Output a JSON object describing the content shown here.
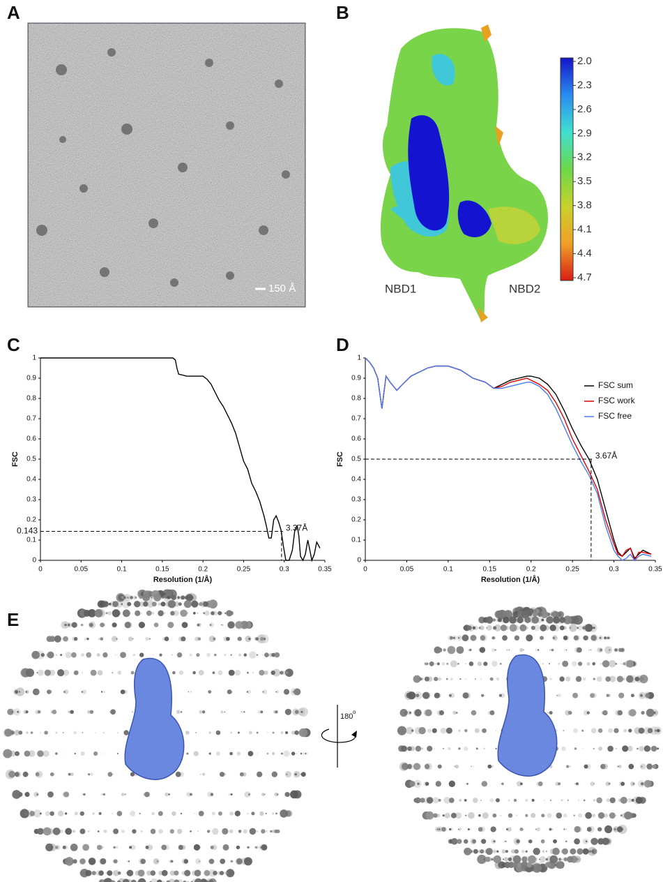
{
  "panels": {
    "a": "A",
    "b": "B",
    "c": "C",
    "d": "D",
    "e": "E"
  },
  "micrograph": {
    "scale_bar": "150 Å"
  },
  "map": {
    "labels": [
      "NBD1",
      "NBD2"
    ],
    "colorbar": {
      "lim": [
        2,
        4.7
      ],
      "ticks": [
        {
          "value": 2,
          "label": "2.0"
        },
        2.3,
        2.6,
        2.9,
        3.2,
        3.5,
        3.8,
        4.1,
        4.4,
        4.7
      ],
      "colors": [
        "#1414c8",
        "#2a8cf0",
        "#40e0d0",
        "#6cd84a",
        "#c8d22a",
        "#f0a028",
        "#d81e14"
      ]
    }
  },
  "chart_data": [
    {
      "type": "line",
      "y_label": "FSC",
      "x_label": "Resolution (1/Å)",
      "color": "#000000",
      "x": [
        0,
        0.05,
        0.1,
        0.15,
        0.163,
        0.166,
        0.168,
        0.17,
        0.175,
        0.18,
        0.19,
        0.2,
        0.205,
        0.21,
        0.215,
        0.22,
        0.225,
        0.23,
        0.235,
        0.24,
        0.245,
        0.25,
        0.255,
        0.26,
        0.265,
        0.27,
        0.275,
        0.278,
        0.281,
        0.284,
        0.287,
        0.29,
        0.293,
        0.296,
        0.299,
        0.302,
        0.306,
        0.31,
        0.313,
        0.316,
        0.318,
        0.32,
        0.323,
        0.326,
        0.329,
        0.331,
        0.334,
        0.337,
        0.34,
        0.344
      ],
      "values": [
        1,
        1,
        1,
        1,
        1,
        0.99,
        0.95,
        0.92,
        0.915,
        0.91,
        0.91,
        0.91,
        0.895,
        0.87,
        0.83,
        0.79,
        0.76,
        0.72,
        0.68,
        0.63,
        0.56,
        0.49,
        0.45,
        0.38,
        0.34,
        0.29,
        0.22,
        0.17,
        0.11,
        0.11,
        0.2,
        0.22,
        0.19,
        0.15,
        0.07,
        0,
        0,
        0.05,
        0.15,
        0.17,
        0.12,
        0.02,
        0,
        0.03,
        0.1,
        0.06,
        0,
        0.03,
        0.09,
        0.06
      ],
      "xlim": [
        0,
        0.35
      ],
      "ylim": [
        0,
        1
      ],
      "xticks": [
        0,
        0.05,
        0.1,
        0.15,
        0.2,
        0.25,
        0.3,
        0.35
      ],
      "yticks": [
        0,
        0.1,
        0.2,
        0.3,
        0.4,
        0.5,
        0.6,
        0.7,
        0.8,
        0.9,
        1
      ],
      "threshold": 0.143,
      "cutoff": 0.2967,
      "annotation": "3.37Å"
    },
    {
      "type": "line",
      "y_label": "FSC",
      "x_label": "Resolution (1/Å)",
      "legend": "upper right",
      "x": [
        0,
        0.005,
        0.01,
        0.015,
        0.02,
        0.025,
        0.03,
        0.038,
        0.045,
        0.055,
        0.065,
        0.075,
        0.085,
        0.1,
        0.115,
        0.13,
        0.145,
        0.155,
        0.165,
        0.175,
        0.185,
        0.195,
        0.2,
        0.21,
        0.22,
        0.23,
        0.24,
        0.25,
        0.26,
        0.27,
        0.28,
        0.29,
        0.3,
        0.305,
        0.31,
        0.315,
        0.32,
        0.325,
        0.33,
        0.335,
        0.345
      ],
      "series": [
        {
          "name": "FSC sum",
          "color": "#000000",
          "values": [
            1,
            0.98,
            0.95,
            0.9,
            0.75,
            0.91,
            0.88,
            0.84,
            0.87,
            0.91,
            0.93,
            0.95,
            0.96,
            0.96,
            0.94,
            0.9,
            0.88,
            0.85,
            0.87,
            0.89,
            0.9,
            0.91,
            0.91,
            0.9,
            0.87,
            0.82,
            0.74,
            0.65,
            0.57,
            0.5,
            0.4,
            0.25,
            0.1,
            0.04,
            0.02,
            0.04,
            0.06,
            0.01,
            0.03,
            0.05,
            0.03
          ]
        },
        {
          "name": "FSC work",
          "color": "#e00000",
          "values": [
            1,
            0.98,
            0.95,
            0.9,
            0.75,
            0.91,
            0.88,
            0.84,
            0.87,
            0.91,
            0.93,
            0.95,
            0.96,
            0.96,
            0.94,
            0.9,
            0.88,
            0.85,
            0.86,
            0.88,
            0.89,
            0.9,
            0.89,
            0.87,
            0.84,
            0.78,
            0.7,
            0.6,
            0.52,
            0.44,
            0.35,
            0.2,
            0.08,
            0.03,
            0.02,
            0.05,
            0.06,
            0,
            0.04,
            0.04,
            0.03
          ]
        },
        {
          "name": "FSC free",
          "color": "#4a7cf0",
          "values": [
            1,
            0.98,
            0.95,
            0.9,
            0.75,
            0.91,
            0.88,
            0.84,
            0.87,
            0.91,
            0.93,
            0.95,
            0.96,
            0.96,
            0.94,
            0.9,
            0.88,
            0.85,
            0.85,
            0.86,
            0.87,
            0.88,
            0.88,
            0.86,
            0.82,
            0.75,
            0.66,
            0.57,
            0.49,
            0.42,
            0.33,
            0.17,
            0.05,
            0.02,
            0,
            0.01,
            0.03,
            0,
            0.02,
            0.03,
            0.02
          ]
        }
      ],
      "xlim": [
        0,
        0.35
      ],
      "ylim": [
        0,
        1
      ],
      "xticks": [
        0,
        0.05,
        0.1,
        0.15,
        0.2,
        0.25,
        0.3,
        0.35
      ],
      "yticks": [
        0,
        0.1,
        0.2,
        0.3,
        0.4,
        0.5,
        0.6,
        0.7,
        0.8,
        0.9,
        1
      ],
      "threshold": 0.5,
      "cutoff": 0.2725,
      "annotation": "3.67Å"
    }
  ],
  "euler": {
    "rotation": "180",
    "rotation_unit": "o"
  }
}
